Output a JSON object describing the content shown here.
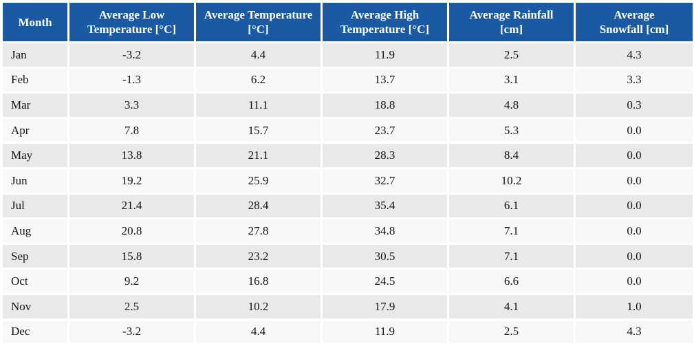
{
  "table": {
    "header": [
      "Month",
      "Average Low Temperature [°C]",
      "Average Temperature [°C]",
      "Average High Temperature [°C]",
      "Average Rainfall [cm]",
      "Average Snowfall [cm]"
    ],
    "rows": [
      [
        "Jan",
        "-3.2",
        "4.4",
        "11.9",
        "2.5",
        "4.3"
      ],
      [
        "Feb",
        "-1.3",
        "6.2",
        "13.7",
        "3.1",
        "3.3"
      ],
      [
        "Mar",
        "3.3",
        "11.1",
        "18.8",
        "4.8",
        "0.3"
      ],
      [
        "Apr",
        "7.8",
        "15.7",
        "23.7",
        "5.3",
        "0.0"
      ],
      [
        "May",
        "13.8",
        "21.1",
        "28.3",
        "8.4",
        "0.0"
      ],
      [
        "Jun",
        "19.2",
        "25.9",
        "32.7",
        "10.2",
        "0.0"
      ],
      [
        "Jul",
        "21.4",
        "28.4",
        "35.4",
        "6.1",
        "0.0"
      ],
      [
        "Aug",
        "20.8",
        "27.8",
        "34.8",
        "7.1",
        "0.0"
      ],
      [
        "Sep",
        "15.8",
        "23.2",
        "30.5",
        "7.1",
        "0.0"
      ],
      [
        "Oct",
        "9.2",
        "16.8",
        "24.5",
        "6.6",
        "0.0"
      ],
      [
        "Nov",
        "2.5",
        "10.2",
        "17.9",
        "4.1",
        "1.0"
      ],
      [
        "Dec",
        "-3.2",
        "4.4",
        "11.9",
        "2.5",
        "4.3"
      ]
    ]
  }
}
